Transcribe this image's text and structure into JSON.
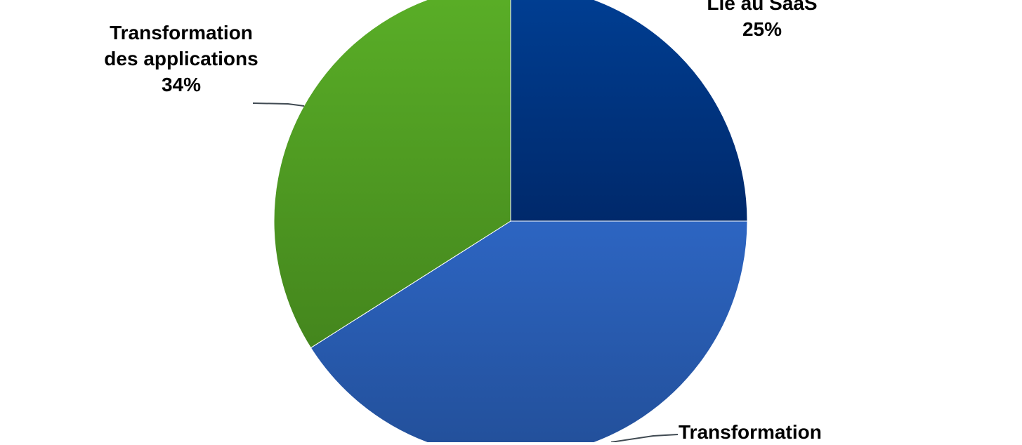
{
  "chart_data": {
    "type": "pie",
    "slices": [
      {
        "label": "Lié au SaaS",
        "value": 25,
        "value_label": "25%",
        "color": "#003a8c"
      },
      {
        "label": "Transformation",
        "value": 41,
        "value_label": "",
        "color": "#2c62bd"
      },
      {
        "label": "Transformation des applications",
        "value": 34,
        "value_label": "34%",
        "color": "#52a124"
      }
    ],
    "labels": {
      "saas": {
        "line1": "Lié au SaaS",
        "percent": "25%"
      },
      "apps": {
        "line1": "Transformation",
        "line2": "des applications",
        "percent": "34%"
      },
      "infra": {
        "line1": "Transformation"
      }
    },
    "legend": "none",
    "grid": false
  }
}
